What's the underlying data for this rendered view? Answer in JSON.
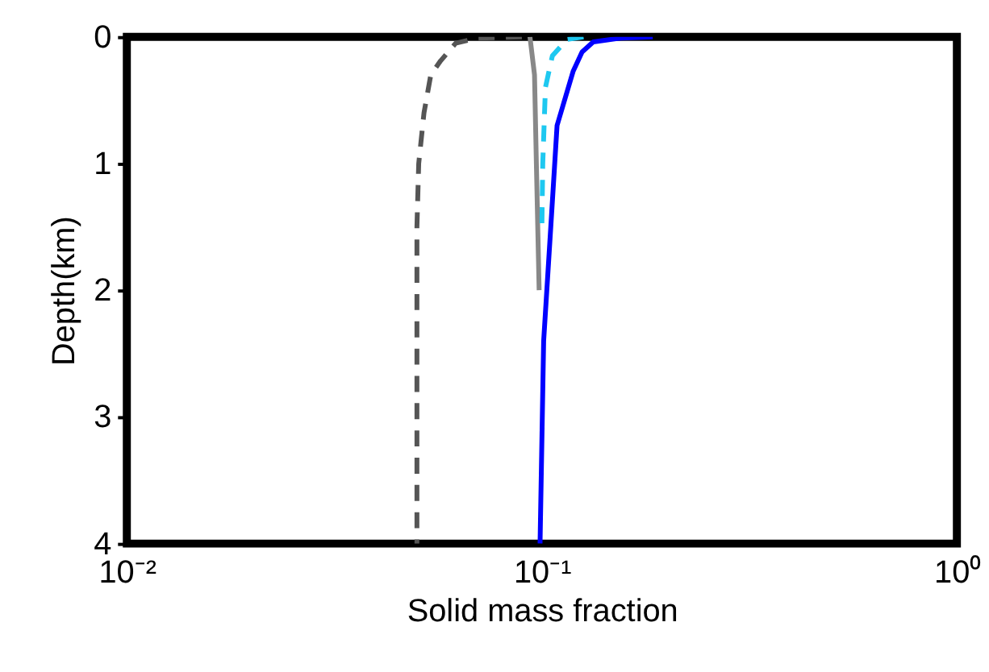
{
  "chart_data": {
    "type": "line",
    "xlabel": "Solid mass fraction",
    "ylabel": "Depth(km)",
    "log": "x",
    "xlim": [
      0.01,
      1
    ],
    "xticks": [
      {
        "value": 0.01,
        "label": "10⁻²"
      },
      {
        "value": 0.1,
        "label": "10⁻¹"
      },
      {
        "value": 1,
        "label": "10⁰"
      }
    ],
    "ylim": [
      4,
      0
    ],
    "yticks": [
      0,
      1,
      2,
      3,
      4
    ],
    "grid": false,
    "marker": "none",
    "series": [
      {
        "color": "#555555",
        "line_style": "dashed",
        "x": [
          0.0895,
          0.07,
          0.062,
          0.057,
          0.054,
          0.052,
          0.0505,
          0.05,
          0.05
        ],
        "values": [
          0,
          0.01,
          0.05,
          0.19,
          0.3,
          0.6,
          1.0,
          1.5,
          4
        ]
      },
      {
        "color": "#888888",
        "line_style": "solid",
        "x": [
          0.0936,
          0.096,
          0.097,
          0.0985
        ],
        "values": [
          0,
          0.3,
          1.0,
          2.0
        ]
      },
      {
        "color": "#1ec8f0",
        "line_style": "dashed",
        "x": [
          0.126,
          0.115,
          0.106,
          0.102,
          0.1005,
          0.1
        ],
        "values": [
          0,
          0.02,
          0.15,
          0.4,
          1.0,
          1.5
        ]
      },
      {
        "color": "#0000ff",
        "line_style": "solid",
        "x": [
          0.185,
          0.155,
          0.133,
          0.125,
          0.119,
          0.1088,
          0.106,
          0.101,
          0.099
        ],
        "values": [
          0,
          0.01,
          0.04,
          0.12,
          0.27,
          0.7,
          1.3,
          2.4,
          4
        ]
      }
    ]
  }
}
